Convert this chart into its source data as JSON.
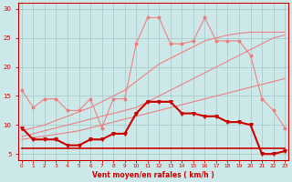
{
  "xlabel": "Vent moyen/en rafales ( km/h )",
  "background_color": "#cce8e8",
  "grid_color": "#aacccc",
  "x": [
    0,
    1,
    2,
    3,
    4,
    5,
    6,
    7,
    8,
    9,
    10,
    11,
    12,
    13,
    14,
    15,
    16,
    17,
    18,
    19,
    20,
    21,
    22,
    23
  ],
  "ylim": [
    4,
    31
  ],
  "xlim": [
    -0.3,
    23.3
  ],
  "yticks": [
    5,
    10,
    15,
    20,
    25,
    30
  ],
  "light_pink": "#f07878",
  "dark_red": "#cc0000",
  "line_lp1": [
    7.5,
    7.8,
    8.1,
    8.4,
    8.7,
    9.0,
    9.5,
    10.0,
    10.5,
    11.0,
    11.5,
    12.0,
    12.5,
    13.0,
    13.5,
    14.0,
    14.5,
    15.0,
    15.5,
    16.0,
    16.5,
    17.0,
    17.5,
    18.0
  ],
  "line_lp2": [
    8.0,
    8.5,
    9.0,
    9.5,
    10.0,
    10.5,
    11.0,
    11.5,
    12.0,
    12.5,
    13.0,
    14.0,
    15.0,
    16.0,
    17.0,
    18.0,
    19.0,
    20.0,
    21.0,
    22.0,
    23.0,
    24.0,
    25.0,
    25.5
  ],
  "line_lp3": [
    9.0,
    9.5,
    10.0,
    10.8,
    11.5,
    12.3,
    13.0,
    14.0,
    15.0,
    16.0,
    17.5,
    19.0,
    20.5,
    21.5,
    22.5,
    23.5,
    24.5,
    25.0,
    25.5,
    25.8,
    26.0,
    26.0,
    26.0,
    26.0
  ],
  "line_lp4_x": [
    0,
    1,
    2,
    3,
    4,
    5,
    6,
    7,
    8,
    9,
    10,
    11,
    12,
    13,
    14,
    15,
    16,
    17,
    18,
    19,
    20,
    21,
    22,
    23
  ],
  "line_lp4": [
    16.0,
    13.0,
    14.5,
    14.5,
    12.5,
    12.5,
    14.5,
    9.5,
    14.5,
    14.5,
    24.0,
    28.5,
    28.5,
    24.0,
    24.0,
    24.5,
    28.5,
    24.5,
    24.5,
    24.5,
    22.0,
    14.5,
    12.5,
    9.5
  ],
  "line_dark": [
    9.5,
    7.5,
    7.5,
    7.5,
    6.5,
    6.5,
    7.5,
    7.5,
    8.5,
    8.5,
    12.0,
    14.0,
    14.0,
    14.0,
    12.0,
    12.0,
    11.5,
    11.5,
    10.5,
    10.5,
    10.0,
    5.0,
    5.0,
    5.5
  ],
  "line_flat": [
    6.0,
    6.0,
    6.0,
    6.0,
    6.0,
    6.0,
    6.0,
    6.0,
    6.0,
    6.0,
    6.0,
    6.0,
    6.0,
    6.0,
    6.0,
    6.0,
    6.0,
    6.0,
    6.0,
    6.0,
    6.0,
    6.0,
    6.0,
    6.0
  ]
}
